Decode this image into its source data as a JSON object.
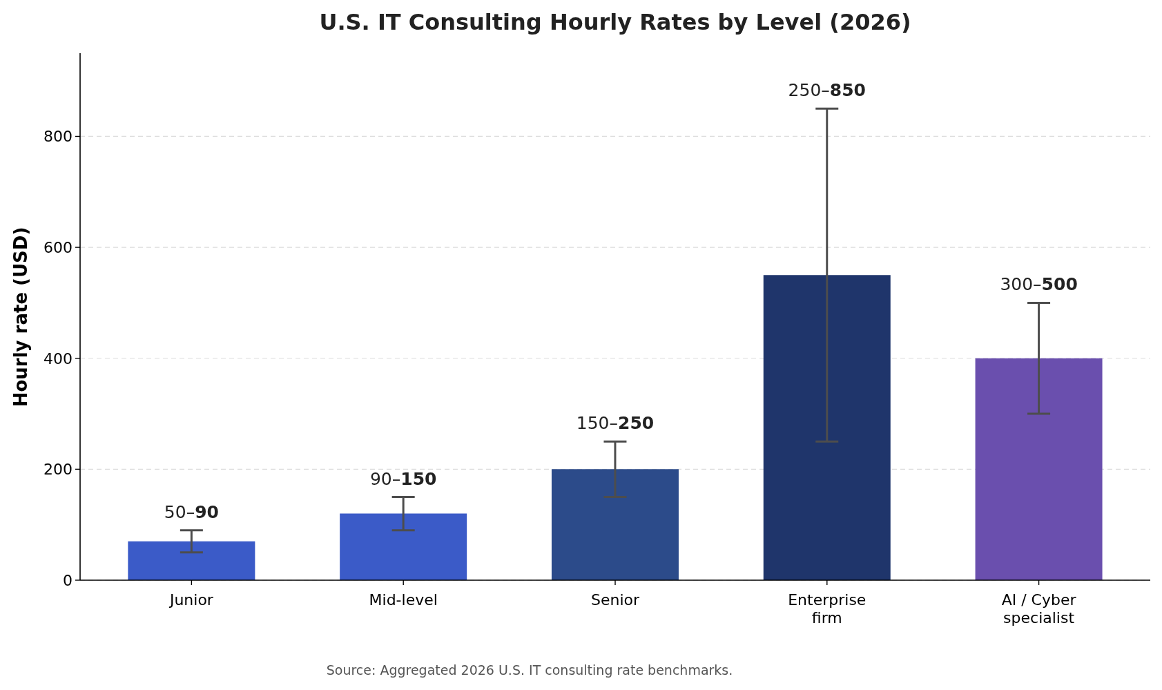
{
  "chart_data": {
    "type": "bar",
    "title": "U.S. IT Consulting Hourly Rates by Level (2026)",
    "ylabel": "Hourly rate (USD)",
    "categories": [
      "Junior",
      "Mid-level",
      "Senior",
      "Enterprise\nfirm",
      "AI / Cyber\nspecialist"
    ],
    "values": [
      70,
      120,
      200,
      550,
      400
    ],
    "colors": [
      "#3b5bc8",
      "#3b5bc8",
      "#2c4b8a",
      "#1f356b",
      "#6a4fae"
    ],
    "errors": [
      20,
      30,
      50,
      300,
      100
    ],
    "ylim": [
      0,
      950
    ],
    "yticks": [
      0,
      200,
      400,
      600,
      800
    ],
    "grid": "y",
    "annotations": [
      {
        "text": "50–90",
        "x": "Junior",
        "y": 90
      },
      {
        "text": "90–150",
        "x": "Mid-level",
        "y": 150
      },
      {
        "text": "150–250",
        "x": "Senior",
        "y": 250
      },
      {
        "text": "250–850",
        "x": "Enterprise\nfirm",
        "y": 850
      },
      {
        "text": "300–500",
        "x": "AI / Cyber\nspecialist",
        "y": 500
      },
      "Source: Aggregated 2026 U.S. IT consulting rate benchmarks."
    ]
  }
}
